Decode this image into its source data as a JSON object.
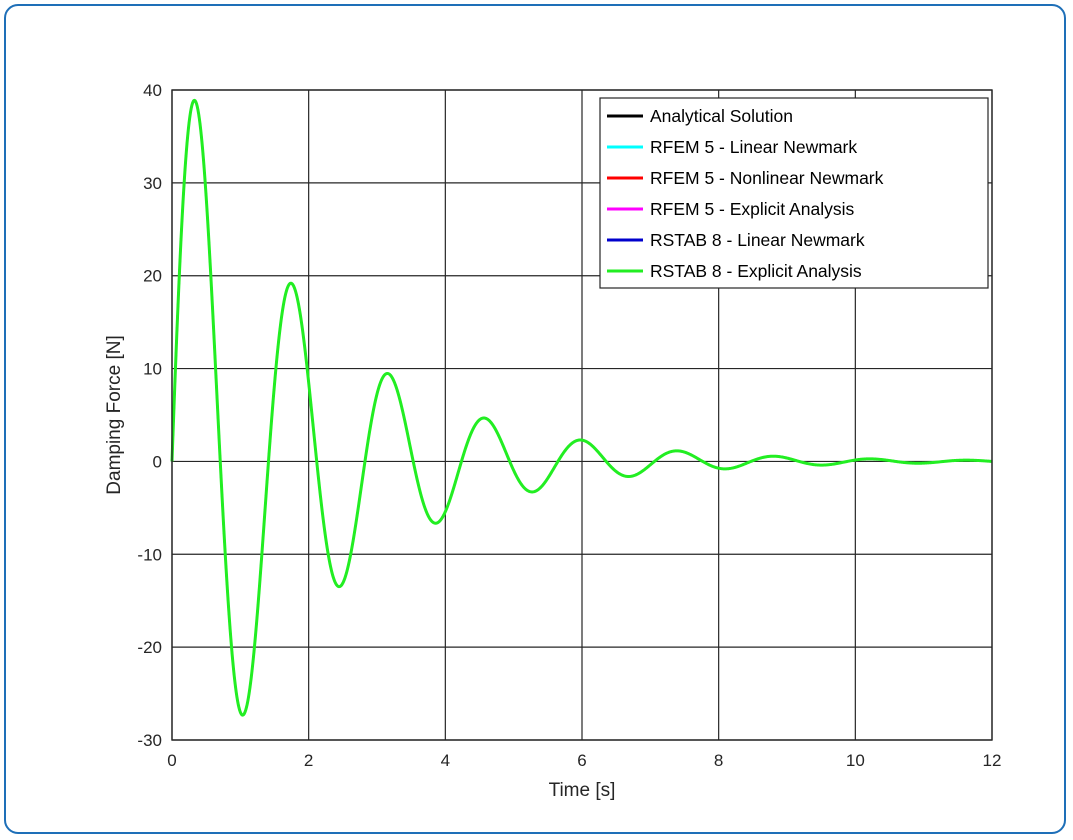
{
  "chart_data": {
    "type": "line",
    "title": "",
    "xlabel": "Time [s]",
    "ylabel": "Damping Force [N]",
    "xlim": [
      0,
      12
    ],
    "ylim": [
      -30,
      40
    ],
    "xticks": [
      0,
      2,
      4,
      6,
      8,
      10,
      12
    ],
    "yticks": [
      -30,
      -20,
      -10,
      0,
      10,
      20,
      30,
      40
    ],
    "grid": true,
    "legend_position": "top-right",
    "series": [
      {
        "name": "Analytical Solution",
        "color": "#000000",
        "function": "damped_sine"
      },
      {
        "name": "RFEM 5 - Linear Newmark",
        "color": "#00ffff",
        "function": "damped_sine"
      },
      {
        "name": "RFEM 5 - Nonlinear Newmark",
        "color": "#ff0000",
        "function": "damped_sine"
      },
      {
        "name": "RFEM 5 - Explicit Analysis",
        "color": "#ff00ff",
        "function": "damped_sine"
      },
      {
        "name": "RSTAB 8 - Linear Newmark",
        "color": "#0000cc",
        "function": "damped_sine"
      },
      {
        "name": "RSTAB 8 - Explicit Analysis",
        "color": "#22ee22",
        "function": "damped_sine"
      }
    ],
    "model": {
      "form": "y = A * exp(-d*t) * sin(w*t)",
      "A": 46.1,
      "d": 0.5,
      "w": 4.45
    },
    "key_points": [
      {
        "t": 0,
        "y": 0
      },
      {
        "t": 0.33,
        "y": 38
      },
      {
        "t": 1.03,
        "y": -26.7
      },
      {
        "t": 1.74,
        "y": 18.7
      },
      {
        "t": 2.44,
        "y": -13.1
      },
      {
        "t": 3.15,
        "y": 9.2
      },
      {
        "t": 3.85,
        "y": -6.4
      },
      {
        "t": 4.56,
        "y": 4.5
      },
      {
        "t": 5.27,
        "y": -3.2
      },
      {
        "t": 5.97,
        "y": 2.2
      },
      {
        "t": 6.68,
        "y": -1.6
      },
      {
        "t": 7.38,
        "y": 1.1
      },
      {
        "t": 8.09,
        "y": -0.8
      },
      {
        "t": 8.8,
        "y": 0.55
      },
      {
        "t": 12,
        "y": 0.05
      }
    ]
  }
}
